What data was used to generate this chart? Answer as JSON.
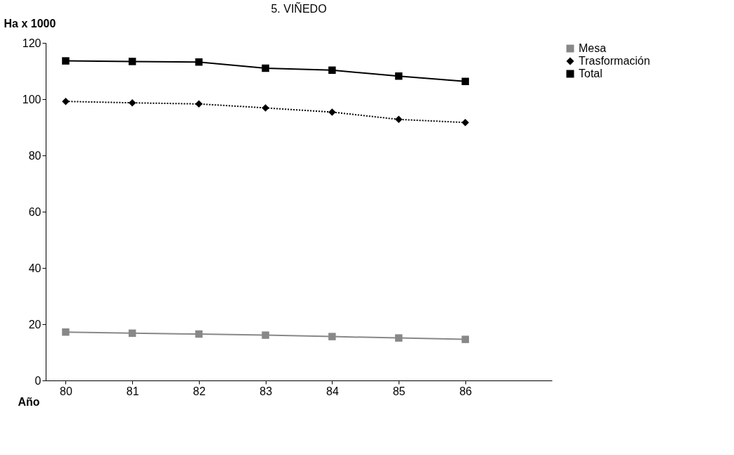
{
  "chart_data": {
    "type": "line",
    "title": "5. VIÑEDO",
    "xlabel": "Año",
    "ylabel": "Ha x 1000",
    "categories": [
      "80",
      "81",
      "82",
      "83",
      "84",
      "85",
      "86"
    ],
    "ylim": [
      0,
      120
    ],
    "yticks": [
      0,
      20,
      40,
      60,
      80,
      100,
      120
    ],
    "grid": false,
    "legend": "right",
    "series": [
      {
        "name": "Mesa",
        "color": "#888888",
        "marker": "square",
        "line_style": "solid",
        "values": [
          17.2,
          16.8,
          16.5,
          16.1,
          15.6,
          15.1,
          14.6
        ]
      },
      {
        "name": "Trasformación",
        "color": "#000000",
        "marker": "diamond",
        "line_style": "dotted",
        "values": [
          99.2,
          98.7,
          98.3,
          96.9,
          95.4,
          92.8,
          91.7
        ]
      },
      {
        "name": "Total",
        "color": "#000000",
        "marker": "square",
        "line_style": "solid",
        "values": [
          113.6,
          113.4,
          113.2,
          111.0,
          110.3,
          108.2,
          106.3
        ]
      }
    ]
  }
}
